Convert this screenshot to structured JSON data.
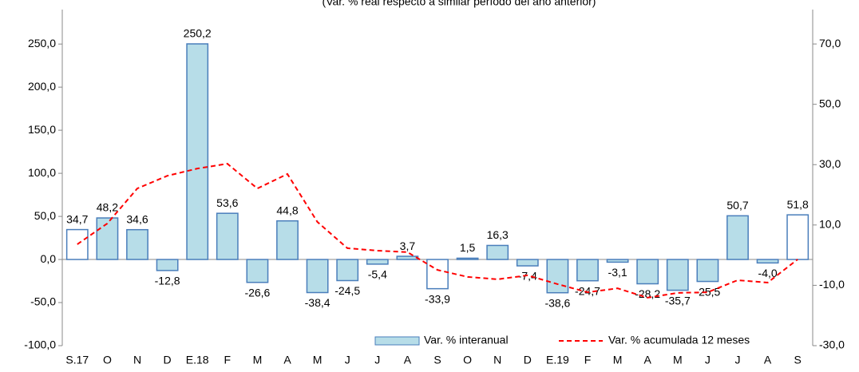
{
  "chart_data": {
    "type": "bar-line",
    "subtitle": "(Var. % real respecto a similar período del año anterior)",
    "categories": [
      "S.17",
      "O",
      "N",
      "D",
      "E.18",
      "F",
      "M",
      "A",
      "M",
      "J",
      "J",
      "A",
      "S",
      "O",
      "N",
      "D",
      "E.19",
      "F",
      "M",
      "A",
      "M",
      "J",
      "J",
      "A",
      "S"
    ],
    "series": [
      {
        "name": "Var. % interanual",
        "type": "bar",
        "color": "#b7dde8",
        "edge_color": "#4a7ebb",
        "colors": [
          "#ffffff",
          "#b7dde8",
          "#b7dde8",
          "#b7dde8",
          "#b7dde8",
          "#b7dde8",
          "#b7dde8",
          "#b7dde8",
          "#b7dde8",
          "#b7dde8",
          "#b7dde8",
          "#b7dde8",
          "#ffffff",
          "#b7dde8",
          "#b7dde8",
          "#b7dde8",
          "#b7dde8",
          "#b7dde8",
          "#b7dde8",
          "#b7dde8",
          "#b7dde8",
          "#b7dde8",
          "#b7dde8",
          "#b7dde8",
          "#ffffff"
        ],
        "values": [
          34.7,
          48.2,
          34.6,
          -12.8,
          250.2,
          53.6,
          -26.6,
          44.8,
          -38.4,
          -24.5,
          -5.4,
          3.7,
          -33.9,
          1.5,
          16.3,
          -7.4,
          -38.6,
          -24.7,
          -3.1,
          -28.2,
          -35.7,
          -25.5,
          50.7,
          -4.0,
          51.8
        ],
        "value_labels": [
          "34,7",
          "48,2",
          "34,6",
          "-12,8",
          "250,2",
          "53,6",
          "-26,6",
          "44,8",
          "-38,4",
          "-24,5",
          "-5,4",
          "3,7",
          "-33,9",
          "1,5",
          "16,3",
          "-7,4",
          "-38,6",
          "-24,7",
          "-3,1",
          "-28,2",
          "-35,7",
          "-25,5",
          "50,7",
          "-4,0",
          "51,8"
        ]
      },
      {
        "name": "Var. % acumulada 12 meses",
        "type": "line",
        "axis": "y2",
        "color": "#ff0000",
        "values": [
          3.6,
          10.5,
          22.1,
          26.3,
          28.7,
          30.3,
          22.1,
          26.9,
          11.0,
          2.3,
          1.5,
          1.0,
          -4.9,
          -7.2,
          -8.0,
          -6.7,
          -9.6,
          -12.3,
          -11.0,
          -14.1,
          -12.5,
          -12.3,
          -8.3,
          -9.1,
          -1.4
        ]
      }
    ],
    "ylim": [
      -100,
      290
    ],
    "yticks": [
      {
        "value": -100,
        "label": "-100,0"
      },
      {
        "value": -50,
        "label": "-50,0"
      },
      {
        "value": 0,
        "label": "0,0"
      },
      {
        "value": 50,
        "label": "50,0"
      },
      {
        "value": 100,
        "label": "100,0"
      },
      {
        "value": 150,
        "label": "150,0"
      },
      {
        "value": 200,
        "label": "200,0"
      },
      {
        "value": 250,
        "label": "250,0"
      }
    ],
    "y2lim": [
      -30,
      81.4
    ],
    "y2ticks": [
      {
        "value": -30,
        "label": "-30,0"
      },
      {
        "value": -10,
        "label": "-10,0"
      },
      {
        "value": 10,
        "label": "10,0"
      },
      {
        "value": 30,
        "label": "30,0"
      },
      {
        "value": 50,
        "label": "50,0"
      },
      {
        "value": 70,
        "label": "70,0"
      }
    ],
    "legend": "bottom-right"
  }
}
